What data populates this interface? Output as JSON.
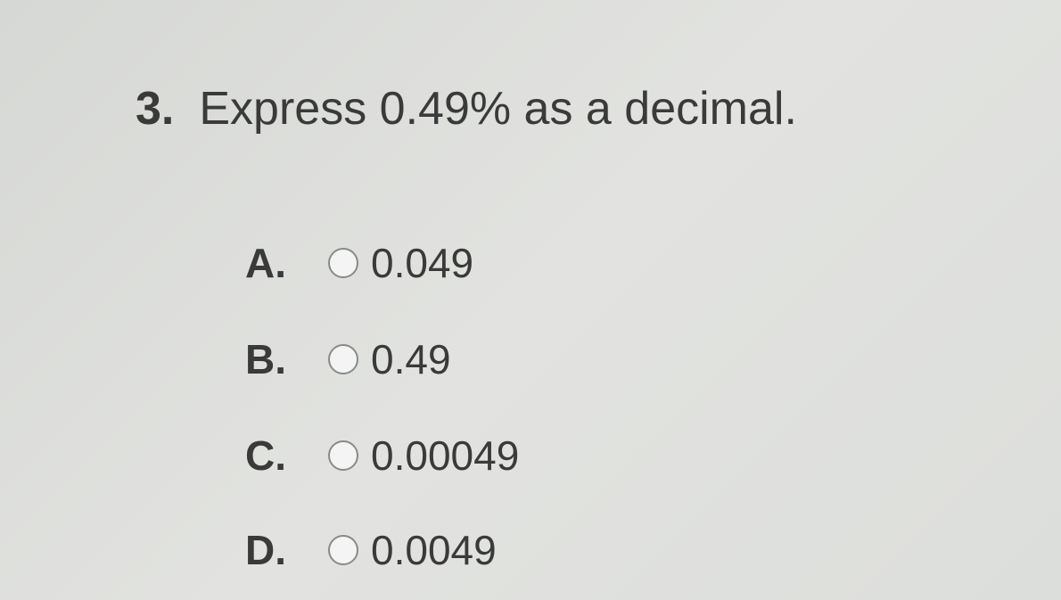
{
  "question": {
    "number": "3.",
    "text": "Express 0.49% as a decimal."
  },
  "options": [
    {
      "letter": "A.",
      "value": "0.049"
    },
    {
      "letter": "B.",
      "value": "0.49"
    },
    {
      "letter": "C.",
      "value": "0.00049"
    },
    {
      "letter": "D.",
      "value": "0.0049"
    }
  ]
}
